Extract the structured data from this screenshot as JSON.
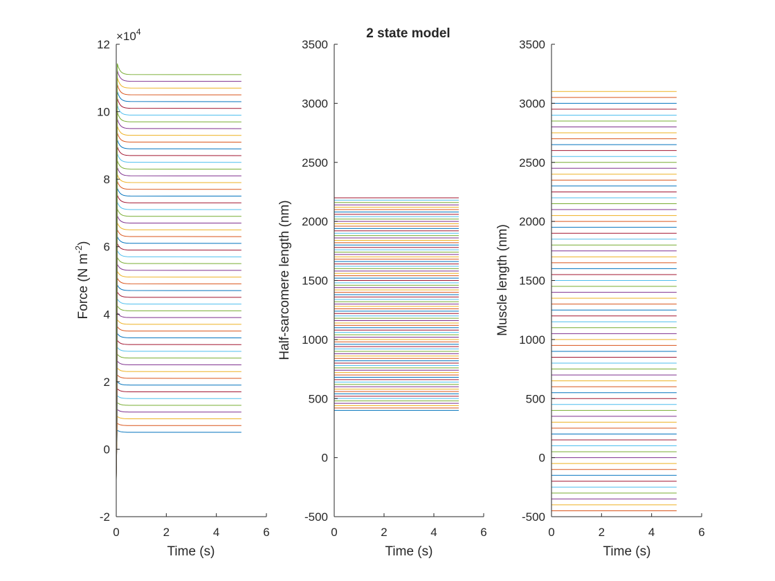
{
  "figure": {
    "title": "2 state model"
  },
  "chart_data": [
    {
      "type": "line",
      "title": "",
      "xlabel": "Time (s)",
      "ylabel_main": "Force (N m",
      "ylabel_sup": "-2",
      "ylabel_tail": ")",
      "exponent_base": "×10",
      "exponent_power": "4",
      "xlim": [
        0,
        6
      ],
      "ylim": [
        -2,
        12
      ],
      "xticks": [
        "0",
        "2",
        "4",
        "6"
      ],
      "yticks": [
        "-2",
        "0",
        "2",
        "4",
        "6",
        "8",
        "10",
        "12"
      ],
      "x_end": 5,
      "series_count": 54,
      "plateau_min": 0.5,
      "plateau_step": 0.2,
      "grid": false,
      "legend": "none",
      "colors": [
        "#0072BD",
        "#D95319",
        "#EDB120",
        "#7E2F8E",
        "#77AC30",
        "#4DBEEE",
        "#A2142F"
      ]
    },
    {
      "type": "line",
      "title": "",
      "xlabel": "Time (s)",
      "ylabel": "Half-sarcomere length (nm)",
      "xlim": [
        0,
        6
      ],
      "ylim": [
        -500,
        3500
      ],
      "xticks": [
        "0",
        "2",
        "4",
        "6"
      ],
      "yticks": [
        "-500",
        "0",
        "500",
        "1000",
        "1500",
        "2000",
        "2500",
        "3000",
        "3500"
      ],
      "x_end": 5,
      "series_count": 91,
      "level_min": 400,
      "level_step": 20,
      "grid": false,
      "legend": "none"
    },
    {
      "type": "line",
      "title": "",
      "xlabel": "Time (s)",
      "ylabel": "Muscle length (nm)",
      "xlim": [
        0,
        6
      ],
      "ylim": [
        -500,
        3500
      ],
      "xticks": [
        "0",
        "2",
        "4",
        "6"
      ],
      "yticks": [
        "-500",
        "0",
        "500",
        "1000",
        "1500",
        "2000",
        "2500",
        "3000",
        "3500"
      ],
      "x_end": 5,
      "series_count": 73,
      "level_min": -500,
      "level_step": 50,
      "grid": false,
      "legend": "none"
    }
  ]
}
